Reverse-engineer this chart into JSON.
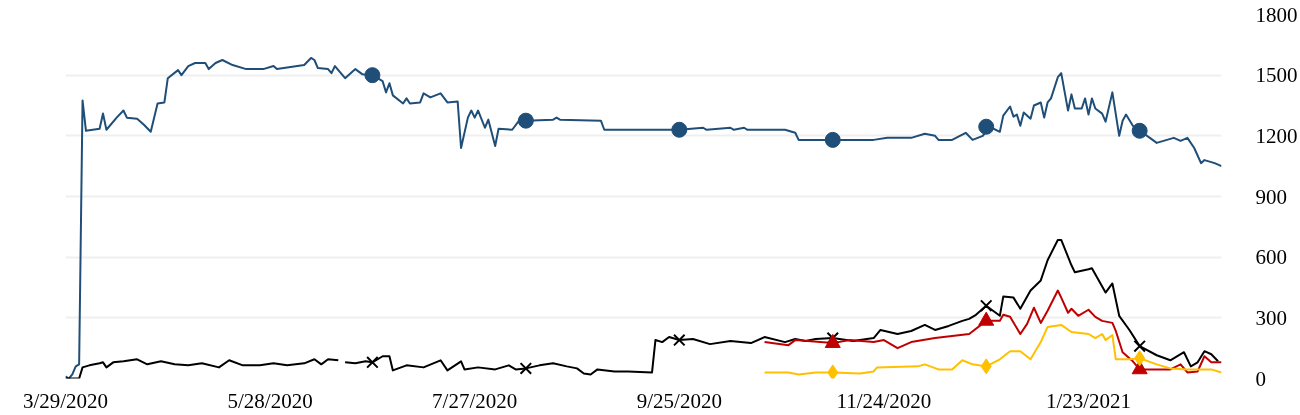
{
  "chart_data": {
    "type": "line",
    "xlim": [
      "2020-03-29",
      "2021-03-03"
    ],
    "xticks": [
      {
        "value": "2020-03-29",
        "label": "3/29/2020"
      },
      {
        "value": "2020-05-28",
        "label": "5/28/2020"
      },
      {
        "value": "2020-07-27",
        "label": "7/27/2020"
      },
      {
        "value": "2020-09-25",
        "label": "9/25/2020"
      },
      {
        "value": "2020-11-24",
        "label": "11/24/2020"
      },
      {
        "value": "2021-01-23",
        "label": "1/23/2021"
      }
    ],
    "ylim": [
      0,
      1800
    ],
    "yticks": [
      0,
      300,
      600,
      900,
      1200,
      1500,
      1800
    ],
    "grid": "y",
    "line_style": "solid",
    "series": [
      {
        "color": "#1f4e79",
        "marker": "none",
        "x": [
          "2020-03-29",
          "2020-03-30",
          "2020-03-31",
          "2020-04-01",
          "2020-04-02",
          "2020-04-03",
          "2020-04-04",
          "2020-04-08",
          "2020-04-09",
          "2020-04-10",
          "2020-04-13",
          "2020-04-15",
          "2020-04-16",
          "2020-04-19",
          "2020-04-21",
          "2020-04-23",
          "2020-04-25",
          "2020-04-27",
          "2020-04-28",
          "2020-05-01",
          "2020-05-02",
          "2020-05-04",
          "2020-05-06",
          "2020-05-09",
          "2020-05-10",
          "2020-05-12",
          "2020-05-14",
          "2020-05-17",
          "2020-05-21",
          "2020-05-26",
          "2020-05-29",
          "2020-05-30",
          "2020-06-03",
          "2020-06-07",
          "2020-06-09",
          "2020-06-10",
          "2020-06-11",
          "2020-06-14",
          "2020-06-15",
          "2020-06-16",
          "2020-06-19",
          "2020-06-22",
          "2020-06-24",
          "2020-06-27",
          "2020-06-30",
          "2020-07-01",
          "2020-07-02",
          "2020-07-03",
          "2020-07-06",
          "2020-07-07",
          "2020-07-08",
          "2020-07-11",
          "2020-07-12",
          "2020-07-14",
          "2020-07-17",
          "2020-07-19",
          "2020-07-22",
          "2020-07-23",
          "2020-07-25",
          "2020-07-26",
          "2020-07-27",
          "2020-07-28",
          "2020-07-30",
          "2020-07-31",
          "2020-08-02",
          "2020-08-03",
          "2020-08-07",
          "2020-08-09",
          "2020-08-11",
          "2020-08-19",
          "2020-08-20",
          "2020-08-21",
          "2020-09-02",
          "2020-09-03",
          "2020-09-25",
          "2020-10-02",
          "2020-10-03",
          "2020-10-10",
          "2020-10-11",
          "2020-10-14",
          "2020-10-15",
          "2020-10-26",
          "2020-10-29",
          "2020-10-30",
          "2020-11-09",
          "2020-11-21",
          "2020-11-25",
          "2020-12-02",
          "2020-12-06",
          "2020-12-09",
          "2020-12-10",
          "2020-12-14",
          "2020-12-18",
          "2020-12-20",
          "2020-12-23",
          "2020-12-25",
          "2020-12-28",
          "2020-12-29",
          "2020-12-31",
          "2021-01-01",
          "2021-01-02",
          "2021-01-03",
          "2021-01-04",
          "2021-01-06",
          "2021-01-07",
          "2021-01-09",
          "2021-01-10",
          "2021-01-11",
          "2021-01-12",
          "2021-01-14",
          "2021-01-15",
          "2021-01-17",
          "2021-01-18",
          "2021-01-19",
          "2021-01-21",
          "2021-01-22",
          "2021-01-23",
          "2021-01-24",
          "2021-01-25",
          "2021-01-27",
          "2021-01-28",
          "2021-01-30",
          "2021-02-01",
          "2021-02-02",
          "2021-02-03",
          "2021-02-05",
          "2021-02-07",
          "2021-02-10",
          "2021-02-12",
          "2021-02-14",
          "2021-02-17",
          "2021-02-19",
          "2021-02-21",
          "2021-02-23",
          "2021-02-25",
          "2021-02-26",
          "2021-03-01",
          "2021-03-03"
        ],
        "values": [
          10,
          0,
          20,
          60,
          70,
          1375,
          1225,
          1235,
          1310,
          1230,
          1290,
          1325,
          1290,
          1285,
          1255,
          1220,
          1360,
          1365,
          1485,
          1525,
          1500,
          1545,
          1560,
          1560,
          1530,
          1560,
          1575,
          1550,
          1530,
          1530,
          1545,
          1530,
          1540,
          1550,
          1585,
          1575,
          1535,
          1530,
          1510,
          1545,
          1485,
          1530,
          1505,
          1500,
          1470,
          1415,
          1460,
          1400,
          1360,
          1385,
          1360,
          1365,
          1410,
          1390,
          1410,
          1365,
          1370,
          1140,
          1290,
          1325,
          1290,
          1325,
          1240,
          1280,
          1150,
          1235,
          1230,
          1275,
          1275,
          1280,
          1290,
          1280,
          1275,
          1230,
          1230,
          1240,
          1230,
          1240,
          1230,
          1240,
          1230,
          1230,
          1215,
          1180,
          1180,
          1180,
          1190,
          1190,
          1210,
          1200,
          1180,
          1180,
          1215,
          1180,
          1200,
          1245,
          1220,
          1300,
          1345,
          1295,
          1305,
          1250,
          1315,
          1285,
          1350,
          1365,
          1290,
          1365,
          1385,
          1490,
          1510,
          1325,
          1405,
          1335,
          1335,
          1385,
          1305,
          1385,
          1335,
          1310,
          1270,
          1415,
          1200,
          1275,
          1305,
          1250,
          1225,
          1190,
          1165,
          1175,
          1190,
          1175,
          1190,
          1140,
          1065,
          1080,
          1065,
          1050
        ]
      },
      {
        "color": "#000000",
        "marker": "none",
        "x": [
          "2020-03-29",
          "2020-04-02",
          "2020-04-03",
          "2020-04-05",
          "2020-04-08",
          "2020-04-09",
          "2020-04-10",
          "2020-04-12",
          "2020-04-15",
          "2020-04-19",
          "2020-04-22",
          "2020-04-26",
          "2020-04-30",
          "2020-05-04",
          "2020-05-08",
          "2020-05-13",
          "2020-05-16",
          "2020-05-20",
          "2020-05-25",
          "2020-05-29",
          "2020-06-02",
          "2020-06-07",
          "2020-06-10",
          "2020-06-12",
          "2020-06-14",
          "2020-06-17",
          "2020-06-18",
          "2020-06-19",
          "2020-06-22",
          "2020-06-25",
          "2020-06-27",
          "2020-06-30",
          "2020-07-02",
          "2020-07-03",
          "2020-07-07",
          "2020-07-12",
          "2020-07-17",
          "2020-07-19",
          "2020-07-23",
          "2020-07-24",
          "2020-07-28",
          "2020-08-02",
          "2020-08-06",
          "2020-08-08",
          "2020-08-11",
          "2020-08-15",
          "2020-08-19",
          "2020-08-23",
          "2020-08-26",
          "2020-08-28",
          "2020-08-30",
          "2020-09-01",
          "2020-09-06",
          "2020-09-10",
          "2020-09-17",
          "2020-09-18",
          "2020-09-20",
          "2020-09-22",
          "2020-09-25",
          "2020-09-29",
          "2020-10-04",
          "2020-10-10",
          "2020-10-16",
          "2020-10-20",
          "2020-10-26",
          "2020-10-29",
          "2020-11-01",
          "2020-11-04",
          "2020-11-09",
          "2020-11-15",
          "2020-11-21",
          "2020-11-23",
          "2020-11-28",
          "2020-12-02",
          "2020-12-06",
          "2020-12-09",
          "2020-12-13",
          "2020-12-17",
          "2020-12-19",
          "2020-12-21",
          "2020-12-24",
          "2020-12-28",
          "2020-12-29",
          "2021-01-01",
          "2021-01-03",
          "2021-01-06",
          "2021-01-09",
          "2021-01-11",
          "2021-01-14",
          "2021-01-15",
          "2021-01-18",
          "2021-01-19",
          "2021-01-23",
          "2021-01-24",
          "2021-01-28",
          "2021-01-30",
          "2021-02-01",
          "2021-02-04",
          "2021-02-07",
          "2021-02-12",
          "2021-02-16",
          "2021-02-20",
          "2021-02-22",
          "2021-02-24",
          "2021-02-26",
          "2021-02-28",
          "2021-03-02"
        ],
        "values": [
          0,
          0,
          55,
          65,
          75,
          80,
          55,
          80,
          85,
          95,
          70,
          85,
          70,
          65,
          75,
          55,
          90,
          65,
          65,
          75,
          65,
          75,
          95,
          70,
          95,
          90,
          null,
          80,
          75,
          85,
          80,
          110,
          110,
          40,
          65,
          55,
          90,
          40,
          85,
          45,
          55,
          45,
          65,
          45,
          50,
          65,
          75,
          60,
          50,
          25,
          20,
          45,
          35,
          35,
          30,
          190,
          180,
          205,
          190,
          195,
          170,
          185,
          175,
          205,
          180,
          195,
          185,
          195,
          200,
          185,
          200,
          240,
          220,
          235,
          265,
          240,
          260,
          285,
          295,
          315,
          360,
          310,
          405,
          400,
          345,
          435,
          485,
          585,
          685,
          685,
          560,
          525,
          540,
          545,
          425,
          470,
          310,
          240,
          160,
          115,
          90,
          130,
          60,
          80,
          135,
          120,
          85
        ]
      },
      {
        "color": "#c00000",
        "marker": "none",
        "x": [
          "2020-10-20",
          "2020-10-27",
          "2020-10-29",
          "2020-11-09",
          "2020-11-14",
          "2020-11-21",
          "2020-11-24",
          "2020-11-28",
          "2020-12-02",
          "2020-12-09",
          "2020-12-14",
          "2020-12-19",
          "2020-12-24",
          "2020-12-28",
          "2020-12-29",
          "2020-12-31",
          "2021-01-03",
          "2021-01-05",
          "2021-01-07",
          "2021-01-09",
          "2021-01-11",
          "2021-01-14",
          "2021-01-15",
          "2021-01-17",
          "2021-01-18",
          "2021-01-20",
          "2021-01-23",
          "2021-01-25",
          "2021-01-27",
          "2021-01-30",
          "2021-01-31",
          "2021-02-02",
          "2021-02-05",
          "2021-02-07",
          "2021-02-12",
          "2021-02-16",
          "2021-02-19",
          "2021-02-21",
          "2021-02-24",
          "2021-02-26",
          "2021-02-28",
          "2021-03-03"
        ],
        "values": [
          180,
          165,
          190,
          175,
          190,
          180,
          190,
          150,
          180,
          200,
          210,
          220,
          285,
          285,
          315,
          305,
          220,
          270,
          350,
          275,
          335,
          435,
          400,
          325,
          345,
          310,
          340,
          305,
          285,
          275,
          235,
          130,
          85,
          45,
          45,
          45,
          70,
          30,
          35,
          110,
          80,
          80
        ]
      },
      {
        "color": "#ffc000",
        "marker": "none",
        "x": [
          "2020-10-20",
          "2020-10-27",
          "2020-10-30",
          "2020-11-04",
          "2020-11-09",
          "2020-11-17",
          "2020-11-21",
          "2020-11-22",
          "2020-12-04",
          "2020-12-06",
          "2020-12-10",
          "2020-12-14",
          "2020-12-17",
          "2020-12-20",
          "2020-12-24",
          "2020-12-28",
          "2020-12-31",
          "2021-01-03",
          "2021-01-06",
          "2021-01-09",
          "2021-01-11",
          "2021-01-15",
          "2021-01-18",
          "2021-01-23",
          "2021-01-25",
          "2021-01-27",
          "2021-01-28",
          "2021-01-30",
          "2021-01-31",
          "2021-02-04",
          "2021-02-07",
          "2021-02-12",
          "2021-02-16",
          "2021-02-21",
          "2021-02-28",
          "2021-03-03"
        ],
        "values": [
          30,
          30,
          20,
          30,
          30,
          25,
          35,
          55,
          60,
          70,
          45,
          45,
          90,
          70,
          60,
          95,
          135,
          135,
          95,
          180,
          255,
          265,
          230,
          220,
          200,
          220,
          190,
          215,
          95,
          95,
          100,
          70,
          50,
          45,
          45,
          30
        ]
      },
      {
        "type": "scatter",
        "color": "#1f4e79",
        "marker": "circle",
        "x": [
          "2020-06-27",
          "2020-08-11",
          "2020-09-25",
          "2020-11-09",
          "2020-12-24",
          "2021-02-07"
        ],
        "values": [
          1500,
          1275,
          1230,
          1180,
          1245,
          1225
        ]
      },
      {
        "type": "scatter",
        "color": "#000000",
        "marker": "cross",
        "x": [
          "2020-06-27",
          "2020-08-11",
          "2020-09-25",
          "2020-11-09",
          "2020-12-24",
          "2021-02-07"
        ],
        "values": [
          80,
          50,
          190,
          200,
          360,
          160
        ]
      },
      {
        "type": "scatter",
        "color": "#c00000",
        "marker": "triangle",
        "x": [
          "2020-11-09",
          "2020-12-24",
          "2021-02-07"
        ],
        "values": [
          175,
          285,
          45
        ]
      },
      {
        "type": "scatter",
        "color": "#ffc000",
        "marker": "diamond",
        "x": [
          "2020-11-09",
          "2020-12-24",
          "2021-02-07"
        ],
        "values": [
          30,
          60,
          100
        ]
      }
    ]
  }
}
